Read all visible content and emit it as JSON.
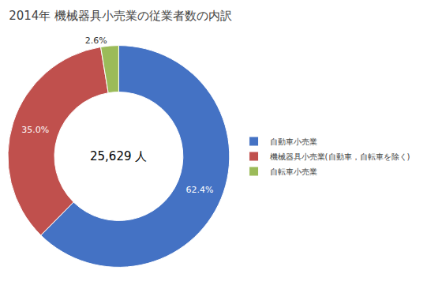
{
  "chart_data": {
    "type": "donut",
    "title": "2014年 機械器具小売業の従業者数の内訳",
    "annotations": [
      "25,629 人"
    ],
    "categories": [
      "自動車小売業",
      "機械器具小売業(自動車，自転車を除く)",
      "自転車小売業"
    ],
    "values": [
      62.4,
      35.0,
      2.6
    ],
    "value_labels": [
      "62.4%",
      "35.0%",
      "2.6%"
    ],
    "colors": [
      "#4472C4",
      "#C0504D",
      "#9BBB59"
    ],
    "data_labels": true,
    "legend": "right"
  }
}
